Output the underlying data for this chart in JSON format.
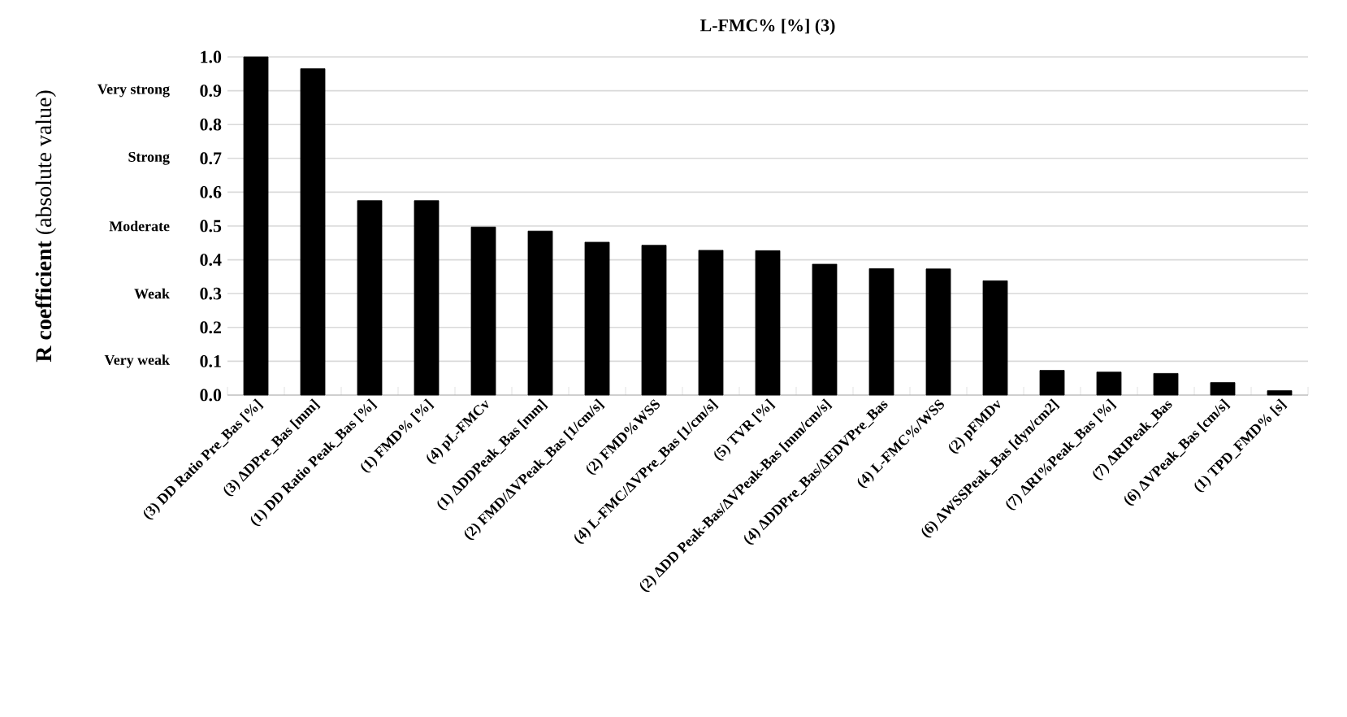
{
  "chart_data": {
    "type": "bar",
    "title": "L-FMC% [%] (3)",
    "ylabel": "**R coefficient** (absolute value)",
    "categories": [
      "(3) DD Ratio Pre_Bas [%]",
      "(3) ΔDPre_Bas [mm]",
      "(1) DD Ratio Peak_Bas [%]",
      "(1) FMD% [%]",
      "(4) pL-FMCv",
      "(1) ΔDDPeak_Bas [mm]",
      "(2) FMD/ΔVPeak_Bas [1/cm/s]",
      "(2) FMD%WSS",
      "(4) L-FMC/ΔVPre_Bas [1/cm/s]",
      "(5) TVR [%]",
      "(2) ΔDD Peak-Bas/ΔVPeak-Bas [mm/cm/s]",
      "(4) ΔDDPre_Bas/ΔEDVPre_Bas",
      "(4) L-FMC%/WSS",
      "(2) pFMDv",
      "(6) ΔWSSPeak_Bas [dyn/cm2]",
      "(7) ΔRI%Peak_Bas [%]",
      "(7) ΔRIPeak_Bas",
      "(6) ΔVPeak_Bas [cm/s]",
      "(1) TPD_FMD% [s]"
    ],
    "values": [
      1.0,
      0.965,
      0.575,
      0.575,
      0.497,
      0.485,
      0.452,
      0.443,
      0.428,
      0.427,
      0.387,
      0.374,
      0.373,
      0.338,
      0.073,
      0.068,
      0.064,
      0.037,
      0.013
    ],
    "color": "#000000",
    "ylim": [
      0,
      1.0
    ],
    "yticks": [
      {
        "value": 0,
        "label": "0.0"
      },
      {
        "value": 0.1,
        "label": "0.1"
      },
      {
        "value": 0.2,
        "label": "0.2"
      },
      {
        "value": 0.3,
        "label": "0.3"
      },
      {
        "value": 0.4,
        "label": "0.4"
      },
      {
        "value": 0.5,
        "label": "0.5"
      },
      {
        "value": 0.6,
        "label": "0.6"
      },
      {
        "value": 0.7,
        "label": "0.7"
      },
      {
        "value": 0.8,
        "label": "0.8"
      },
      {
        "value": 0.9,
        "label": "0.9"
      },
      {
        "value": 1.0,
        "label": "1.0"
      }
    ],
    "grid": "y",
    "annotations": [
      "Very strong",
      "Strong",
      "Moderate",
      "Weak",
      "Very weak"
    ]
  }
}
